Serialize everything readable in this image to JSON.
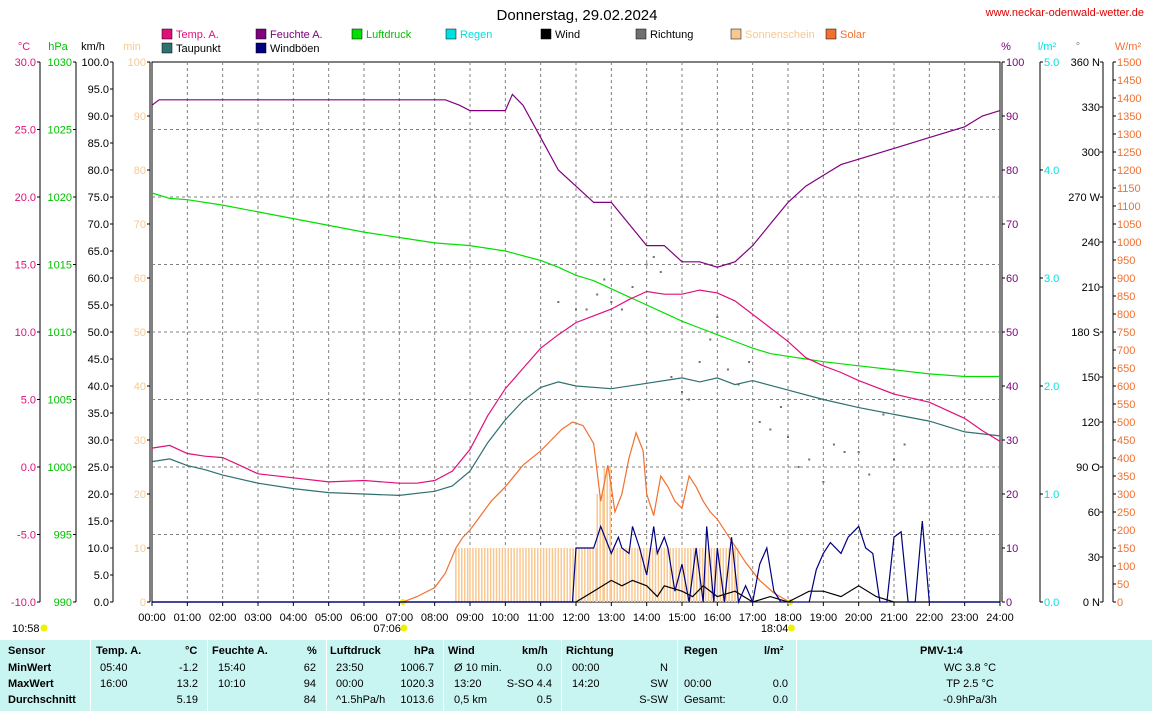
{
  "header": {
    "title": "Donnerstag, 29.02.2024",
    "website": "www.neckar-odenwald-wetter.de"
  },
  "legend": [
    {
      "label": "Temp. A.",
      "color": "#e0107a"
    },
    {
      "label": "Taupunkt",
      "color": "#2f7070"
    },
    {
      "label": "Feuchte A.",
      "color": "#800080"
    },
    {
      "label": "Windböen",
      "color": "#000080"
    },
    {
      "label": "Luftdruck",
      "color": "#00e000"
    },
    {
      "label": "Regen",
      "color": "#00e0e0"
    },
    {
      "label": "Wind",
      "color": "#000000"
    },
    {
      "label": "Richtung",
      "color": "#707070"
    },
    {
      "label": "Sonnenschein",
      "color": "#f8c890"
    },
    {
      "label": "Solar",
      "color": "#f07030"
    }
  ],
  "axis_units": {
    "temp": "°C",
    "pressure": "hPa",
    "wind": "km/h",
    "sun": "min",
    "humidity": "%",
    "rain": "l/m²",
    "direction": "°",
    "solar": "W/m²"
  },
  "axes": {
    "temp_ticks": [
      "30.0",
      "25.0",
      "20.0",
      "15.0",
      "10.0",
      "5.0",
      "0.0",
      "-5.0",
      "-10.0"
    ],
    "pressure_ticks": [
      "1030",
      "1025",
      "1020",
      "1015",
      "1010",
      "1005",
      "1000",
      "995",
      "990"
    ],
    "wind_ticks": [
      "100.0",
      "95.0",
      "90.0",
      "85.0",
      "80.0",
      "75.0",
      "70.0",
      "65.0",
      "60.0",
      "55.0",
      "50.0",
      "45.0",
      "40.0",
      "35.0",
      "30.0",
      "25.0",
      "20.0",
      "15.0",
      "10.0",
      "5.0",
      "0.0"
    ],
    "sun_ticks": [
      "100",
      "90",
      "80",
      "70",
      "60",
      "50",
      "40",
      "30",
      "20",
      "10",
      "0"
    ],
    "humidity_ticks": [
      "100",
      "90",
      "80",
      "70",
      "60",
      "50",
      "40",
      "30",
      "20",
      "10",
      "0"
    ],
    "rain_ticks": [
      "5.0",
      "4.0",
      "3.0",
      "2.0",
      "1.0",
      "0.0"
    ],
    "direction_ticks": [
      "360 N",
      "330",
      "300",
      "270 W",
      "240",
      "210",
      "180 S",
      "150",
      "120",
      "90 O",
      "60",
      "30",
      "0 N"
    ],
    "solar_ticks": [
      "1500",
      "1450",
      "1400",
      "1350",
      "1300",
      "1250",
      "1200",
      "1150",
      "1100",
      "1050",
      "1000",
      "950",
      "900",
      "850",
      "800",
      "750",
      "700",
      "650",
      "600",
      "550",
      "500",
      "450",
      "400",
      "350",
      "300",
      "250",
      "200",
      "150",
      "100",
      "50",
      "0"
    ],
    "time_ticks": [
      "00:00",
      "01:00",
      "02:00",
      "03:00",
      "04:00",
      "05:00",
      "06:00",
      "07:00",
      "08:00",
      "09:00",
      "10:00",
      "11:00",
      "12:00",
      "13:00",
      "14:00",
      "15:00",
      "16:00",
      "17:00",
      "18:00",
      "19:00",
      "20:00",
      "21:00",
      "22:00",
      "23:00",
      "24:00"
    ]
  },
  "sun_events": {
    "daylength": "10:58",
    "sunrise": "07:06",
    "sunset": "18:04"
  },
  "chart_data": {
    "type": "line",
    "title": "Donnerstag, 29.02.2024",
    "x_unit": "h",
    "xlim": [
      0,
      24
    ],
    "grid": true,
    "series": [
      {
        "name": "Temp. A.",
        "unit": "°C",
        "color": "#e0107a",
        "scale": "temp",
        "x": [
          0,
          0.5,
          1,
          1.5,
          2,
          2.5,
          3,
          4,
          5,
          6,
          7,
          7.5,
          8,
          8.5,
          9,
          9.5,
          10,
          10.5,
          11,
          11.5,
          12,
          12.5,
          13,
          13.5,
          14,
          14.5,
          15,
          15.5,
          16,
          16.5,
          17,
          17.5,
          18,
          18.5,
          19,
          19.5,
          20,
          21,
          22,
          23,
          23.5,
          24
        ],
        "y": [
          1.4,
          1.6,
          1.0,
          0.8,
          0.7,
          0.1,
          -0.5,
          -0.8,
          -1.1,
          -1.0,
          -1.2,
          -1.2,
          -1.0,
          -0.3,
          1.3,
          3.8,
          5.8,
          7.3,
          8.8,
          9.8,
          10.7,
          11.2,
          11.7,
          12.4,
          13.0,
          12.8,
          12.8,
          13.1,
          12.9,
          12.3,
          11.3,
          10.3,
          9.3,
          8.1,
          7.5,
          7.0,
          6.4,
          5.4,
          4.8,
          3.6,
          2.7,
          1.9
        ]
      },
      {
        "name": "Taupunkt",
        "unit": "°C",
        "color": "#2f7070",
        "scale": "temp",
        "x": [
          0,
          0.5,
          1,
          1.5,
          2,
          3,
          4,
          5,
          6,
          7,
          8,
          8.5,
          9,
          9.5,
          10,
          10.5,
          11,
          11.5,
          12,
          13,
          14,
          15,
          15.5,
          16,
          16.5,
          17,
          18,
          19,
          20,
          21,
          22,
          23,
          24
        ],
        "y": [
          0.4,
          0.6,
          0.1,
          -0.2,
          -0.6,
          -1.2,
          -1.6,
          -1.9,
          -2.0,
          -2.1,
          -1.8,
          -1.4,
          -0.3,
          1.8,
          3.5,
          4.9,
          5.9,
          6.3,
          6.0,
          5.8,
          6.2,
          6.6,
          6.3,
          6.6,
          6.1,
          6.4,
          5.7,
          5.0,
          4.4,
          3.9,
          3.4,
          2.6,
          2.3
        ]
      },
      {
        "name": "Feuchte A.",
        "unit": "%",
        "color": "#800080",
        "scale": "humidity",
        "x": [
          0,
          0.2,
          1,
          2,
          3,
          4,
          5,
          6,
          7,
          8,
          8.3,
          8.7,
          9,
          9.5,
          10,
          10.2,
          10.5,
          11,
          11.5,
          12,
          12.5,
          13,
          13.5,
          14,
          14.5,
          15,
          15.5,
          16,
          16.5,
          17,
          17.5,
          18,
          18.5,
          19,
          19.5,
          20,
          21,
          22,
          23,
          23.5,
          24
        ],
        "y": [
          92,
          93,
          93,
          93,
          93,
          93,
          93,
          93,
          93,
          93,
          93,
          92,
          91,
          91,
          91,
          94,
          92,
          86,
          80,
          77,
          74,
          74,
          70,
          66,
          66,
          63,
          63,
          62,
          63,
          66,
          70,
          74,
          77,
          79,
          81,
          82,
          84,
          86,
          88,
          90,
          91
        ]
      },
      {
        "name": "Luftdruck",
        "unit": "hPa",
        "color": "#00e000",
        "scale": "pressure",
        "x": [
          0,
          0.5,
          1,
          2,
          3,
          4,
          5,
          6,
          7,
          8,
          9,
          10,
          11,
          11.5,
          12,
          12.5,
          13,
          13.5,
          14,
          14.5,
          15,
          15.5,
          16,
          16.5,
          17,
          17.5,
          18,
          18.5,
          19,
          20,
          21,
          22,
          23,
          24
        ],
        "y": [
          1020.3,
          1019.9,
          1019.8,
          1019.4,
          1018.9,
          1018.4,
          1017.9,
          1017.4,
          1017.0,
          1016.6,
          1016.4,
          1016.0,
          1015.3,
          1014.8,
          1014.2,
          1013.8,
          1013.2,
          1012.6,
          1012.0,
          1011.4,
          1010.8,
          1010.3,
          1009.8,
          1009.3,
          1008.8,
          1008.4,
          1008.2,
          1008.0,
          1007.8,
          1007.5,
          1007.2,
          1006.9,
          1006.7,
          1006.7
        ]
      },
      {
        "name": "Solar",
        "unit": "W/m²",
        "color": "#f07030",
        "scale": "solar",
        "x": [
          7.1,
          7.5,
          8,
          8.3,
          8.6,
          8.8,
          9,
          9.3,
          9.6,
          10,
          10.5,
          11,
          11.3,
          11.6,
          11.9,
          12.2,
          12.5,
          12.7,
          12.9,
          13,
          13.1,
          13.3,
          13.5,
          13.7,
          13.9,
          14,
          14.2,
          14.4,
          14.6,
          14.8,
          15,
          15.2,
          15.4,
          15.6,
          15.8,
          16,
          16.4,
          16.8,
          17.2,
          17.6,
          18.04
        ],
        "y": [
          0,
          15,
          40,
          80,
          150,
          180,
          200,
          240,
          280,
          320,
          380,
          420,
          450,
          480,
          500,
          490,
          440,
          280,
          380,
          320,
          250,
          300,
          400,
          470,
          420,
          300,
          240,
          350,
          320,
          280,
          260,
          350,
          320,
          280,
          250,
          230,
          170,
          110,
          60,
          25,
          0
        ]
      },
      {
        "name": "Sonnenschein",
        "unit": "min",
        "color": "#f8c890",
        "scale": "sun",
        "x": [
          8.6,
          9,
          10,
          11,
          12,
          12.4,
          12.6,
          12.8,
          13,
          14,
          15,
          16,
          16.5,
          16.6
        ],
        "y": [
          10,
          10,
          10,
          10,
          10,
          10,
          20,
          25,
          10,
          10,
          10,
          10,
          10,
          0
        ]
      },
      {
        "name": "Wind",
        "unit": "km/h",
        "color": "#000000",
        "scale": "wind",
        "x": [
          0,
          12,
          12.5,
          13,
          13.3,
          13.6,
          14,
          14.3,
          14.5,
          15,
          15.3,
          15.6,
          16,
          16.5,
          17,
          17.5,
          18,
          18.3,
          18.6,
          19,
          19.5,
          20,
          20.5,
          21,
          24
        ],
        "y": [
          0,
          0,
          2,
          4,
          3,
          4,
          3,
          1,
          3,
          2,
          1,
          3,
          1,
          2,
          0,
          1,
          0,
          1,
          2,
          2,
          1,
          3,
          1,
          0,
          0
        ]
      },
      {
        "name": "Windböen",
        "unit": "km/h",
        "color": "#000080",
        "scale": "wind",
        "x": [
          0,
          11.6,
          11.9,
          12,
          12.5,
          12.7,
          13,
          13.2,
          13.3,
          13.5,
          13.6,
          13.8,
          14,
          14.2,
          14.3,
          14.5,
          14.6,
          14.8,
          15,
          15.2,
          15.4,
          15.6,
          15.7,
          15.9,
          16,
          16.2,
          16.4,
          16.6,
          16.8,
          17,
          17.2,
          17.4,
          17.6,
          17.8,
          18,
          18.2,
          18.4,
          18.6,
          18.8,
          19,
          19.2,
          19.5,
          19.7,
          20,
          20.2,
          20.4,
          20.6,
          20.8,
          21,
          21.2,
          21.4,
          21.6,
          21.8,
          22,
          24
        ],
        "y": [
          0,
          0,
          0,
          10,
          10,
          14,
          9,
          12,
          10,
          9,
          14,
          10,
          5,
          14,
          9,
          12,
          10,
          2,
          7,
          0,
          10,
          0,
          14,
          0,
          10,
          0,
          12,
          0,
          3,
          0,
          7,
          10,
          2,
          0,
          0,
          0,
          0,
          0,
          6,
          9,
          11,
          9,
          12,
          14,
          10,
          9,
          0,
          0,
          12,
          13,
          0,
          0,
          15,
          0,
          0
        ]
      },
      {
        "name": "Richtung",
        "unit": "°",
        "color": "#707070",
        "scale": "direction",
        "style": "dots",
        "x": [
          11.5,
          12,
          12.3,
          12.6,
          12.8,
          13,
          13.3,
          13.6,
          14,
          14.2,
          14.4,
          14.7,
          15,
          15.2,
          15.5,
          15.8,
          16,
          16.3,
          16.6,
          16.9,
          17.2,
          17.5,
          17.8,
          18,
          18.3,
          18.6,
          19,
          19.3,
          19.6,
          20,
          20.3,
          20.7,
          21,
          21.3
        ],
        "y": [
          200,
          195,
          195,
          205,
          215,
          200,
          195,
          210,
          225,
          230,
          220,
          150,
          140,
          135,
          160,
          175,
          190,
          155,
          145,
          160,
          120,
          115,
          130,
          110,
          90,
          95,
          80,
          105,
          100,
          100,
          85,
          125,
          95,
          105
        ]
      }
    ],
    "stats_table": {
      "headers": [
        "Sensor",
        "Temp. A.",
        "°C",
        "Feuchte A.",
        "%",
        "Luftdruck",
        "hPa",
        "Wind",
        "km/h",
        "Richtung",
        "Regen",
        "l/m²",
        "PMV-1:4"
      ],
      "rows": [
        {
          "label": "MinWert",
          "temp_time": "05:40",
          "temp": "-1.2",
          "hum_time": "15:40",
          "hum": "62",
          "press_time": "23:50",
          "press": "1006.7",
          "wind_label": "Ø 10 min.",
          "wind": "0.0",
          "dir_time": "00:00",
          "dir": "N",
          "rain_time": "",
          "rain": "",
          "pmv": "WC 3.8 °C"
        },
        {
          "label": "MaxWert",
          "temp_time": "16:00",
          "temp": "13.2",
          "hum_time": "10:10",
          "hum": "94",
          "press_time": "00:00",
          "press": "1020.3",
          "wind_label": "13:20",
          "wind": "S-SO 4.4",
          "dir_time": "14:20",
          "dir": "SW",
          "rain_time": "00:00",
          "rain": "0.0",
          "pmv": "TP 2.5 °C"
        },
        {
          "label": "Durchschnitt",
          "temp_time": "",
          "temp": "5.19",
          "hum_time": "",
          "hum": "84",
          "press_time": "^1.5hPa/h",
          "press": "1013.6",
          "wind_label": "0,5 km",
          "wind": "0.5",
          "dir_time": "",
          "dir": "S-SW",
          "rain_time": "Gesamt:",
          "rain": "0.0",
          "pmv": "-0.9hPa/3h"
        }
      ]
    }
  }
}
